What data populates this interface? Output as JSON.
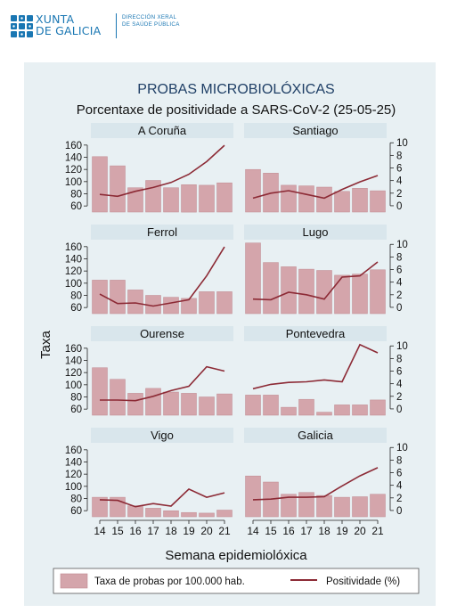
{
  "header": {
    "brand_line1": "XUNTA",
    "brand_line2": "DE GALICIA",
    "dept_line1": "DIRECCIÓN XERAL",
    "dept_line2": "DE SAÚDE PÚBLICA"
  },
  "colors": {
    "brand": "#1a77b3",
    "panel_bg": "#e8f0f3",
    "strip_bg": "#d9e6ec",
    "bar": "#d4a5ab",
    "bar_edge": "#c08a91",
    "line": "#8c2a35"
  },
  "chart_data": {
    "type": "bar",
    "title": "PROBAS MICROBIOLÓXICAS",
    "subtitle": "Porcentaxe de positividade a SARS-CoV-2 (25-05-25)",
    "xlabel": "Semana epidemiolóxica",
    "ylabel": "Taxa",
    "categories": [
      "14",
      "15",
      "16",
      "17",
      "18",
      "19",
      "20",
      "21"
    ],
    "y_left": {
      "ticks": [
        60,
        80,
        100,
        120,
        140,
        160
      ],
      "range": [
        50,
        170
      ]
    },
    "y_right": {
      "ticks": [
        0,
        2,
        4,
        6,
        8,
        10
      ],
      "range": [
        -1,
        10.6
      ]
    },
    "legend": {
      "position": "bottom",
      "bar_label": "Taxa de probas por 100.000 hab.",
      "line_label": "Positividade (%)"
    },
    "panels": [
      {
        "name": "A Coruña",
        "bars": [
          141,
          126,
          90,
          102,
          90,
          95,
          94,
          98
        ],
        "line": [
          1.8,
          1.5,
          2.3,
          2.9,
          3.7,
          5.0,
          7.0,
          9.6
        ]
      },
      {
        "name": "Santiago",
        "bars": [
          120,
          114,
          94,
          93,
          91,
          84,
          89,
          85
        ],
        "line": [
          1.2,
          2.0,
          2.4,
          1.8,
          1.2,
          2.6,
          3.8,
          4.8
        ]
      },
      {
        "name": "Ferrol",
        "bars": [
          105,
          105,
          89,
          80,
          77,
          75,
          86,
          86
        ],
        "line": [
          2.1,
          0.6,
          0.7,
          0.2,
          0.7,
          1.2,
          5.0,
          9.6
        ]
      },
      {
        "name": "Lugo",
        "bars": [
          166,
          134,
          127,
          123,
          121,
          113,
          115,
          122
        ],
        "line": [
          1.3,
          1.2,
          2.4,
          2.0,
          1.3,
          4.8,
          5.0,
          7.2
        ]
      },
      {
        "name": "Ourense",
        "bars": [
          128,
          109,
          86,
          94,
          88,
          86,
          80,
          85
        ],
        "line": [
          1.4,
          1.4,
          1.3,
          2.0,
          2.9,
          3.6,
          6.7,
          6.0
        ]
      },
      {
        "name": "Pontevedra",
        "bars": [
          83,
          83,
          63,
          76,
          55,
          67,
          67,
          75
        ],
        "line": [
          3.2,
          3.9,
          4.2,
          4.3,
          4.6,
          4.3,
          10.2,
          8.9
        ]
      },
      {
        "name": "Vigo",
        "bars": [
          82,
          82,
          68,
          64,
          60,
          57,
          56,
          61
        ],
        "line": [
          1.7,
          1.6,
          0.6,
          1.1,
          0.7,
          3.4,
          2.1,
          2.8
        ]
      },
      {
        "name": "Galicia",
        "bars": [
          117,
          107,
          87,
          90,
          85,
          82,
          83,
          87
        ],
        "line": [
          1.7,
          1.8,
          2.1,
          2.1,
          2.2,
          3.9,
          5.5,
          6.8
        ]
      }
    ]
  }
}
